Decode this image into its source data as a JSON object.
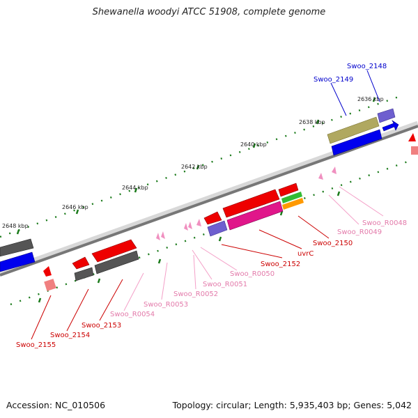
{
  "title": "Shewanella woodyi ATCC 51908, complete genome",
  "footer": {
    "accession": "Accession: NC_010506",
    "summary": "Topology: circular; Length: 5,935,403 bp; Genes: 5,042"
  },
  "kbp_labels": [
    "2636 kbp",
    "2638 kbp",
    "2640 kbp",
    "2642 kbp",
    "2644 kbp",
    "2646 kbp",
    "2648 kbp"
  ],
  "gene_labels": {
    "swoo_2148": "Swoo_2148",
    "swoo_2149": "Swoo_2149",
    "swoo_r0048": "Swoo_R0048",
    "swoo_r0049": "Swoo_R0049",
    "swoo_2150": "Swoo_2150",
    "uvrc": "uvrC",
    "swoo_2152": "Swoo_2152",
    "swoo_r0050": "Swoo_R0050",
    "swoo_r0051": "Swoo_R0051",
    "swoo_r0052": "Swoo_R0052",
    "swoo_r0053": "Swoo_R0053",
    "swoo_r0054": "Swoo_R0054",
    "swoo_2153": "Swoo_2153",
    "swoo_2154": "Swoo_2154",
    "swoo_2155": "Swoo_2155"
  },
  "colors": {
    "backbone": "#808080",
    "tick": "#1a7a1a",
    "cds_red": "#ee0000",
    "cds_blue": "#0000ee",
    "cds_grey": "#555555",
    "cds_olive": "#b0a860",
    "cds_purple": "#6e5fcf",
    "cds_magenta": "#e0168a",
    "cds_green": "#33bb33",
    "cds_orange": "#ff9900",
    "rna_pink": "#f090c0",
    "label_blue": "#0000cc",
    "label_red": "#cc0000",
    "label_pink": "#e37aaa"
  }
}
